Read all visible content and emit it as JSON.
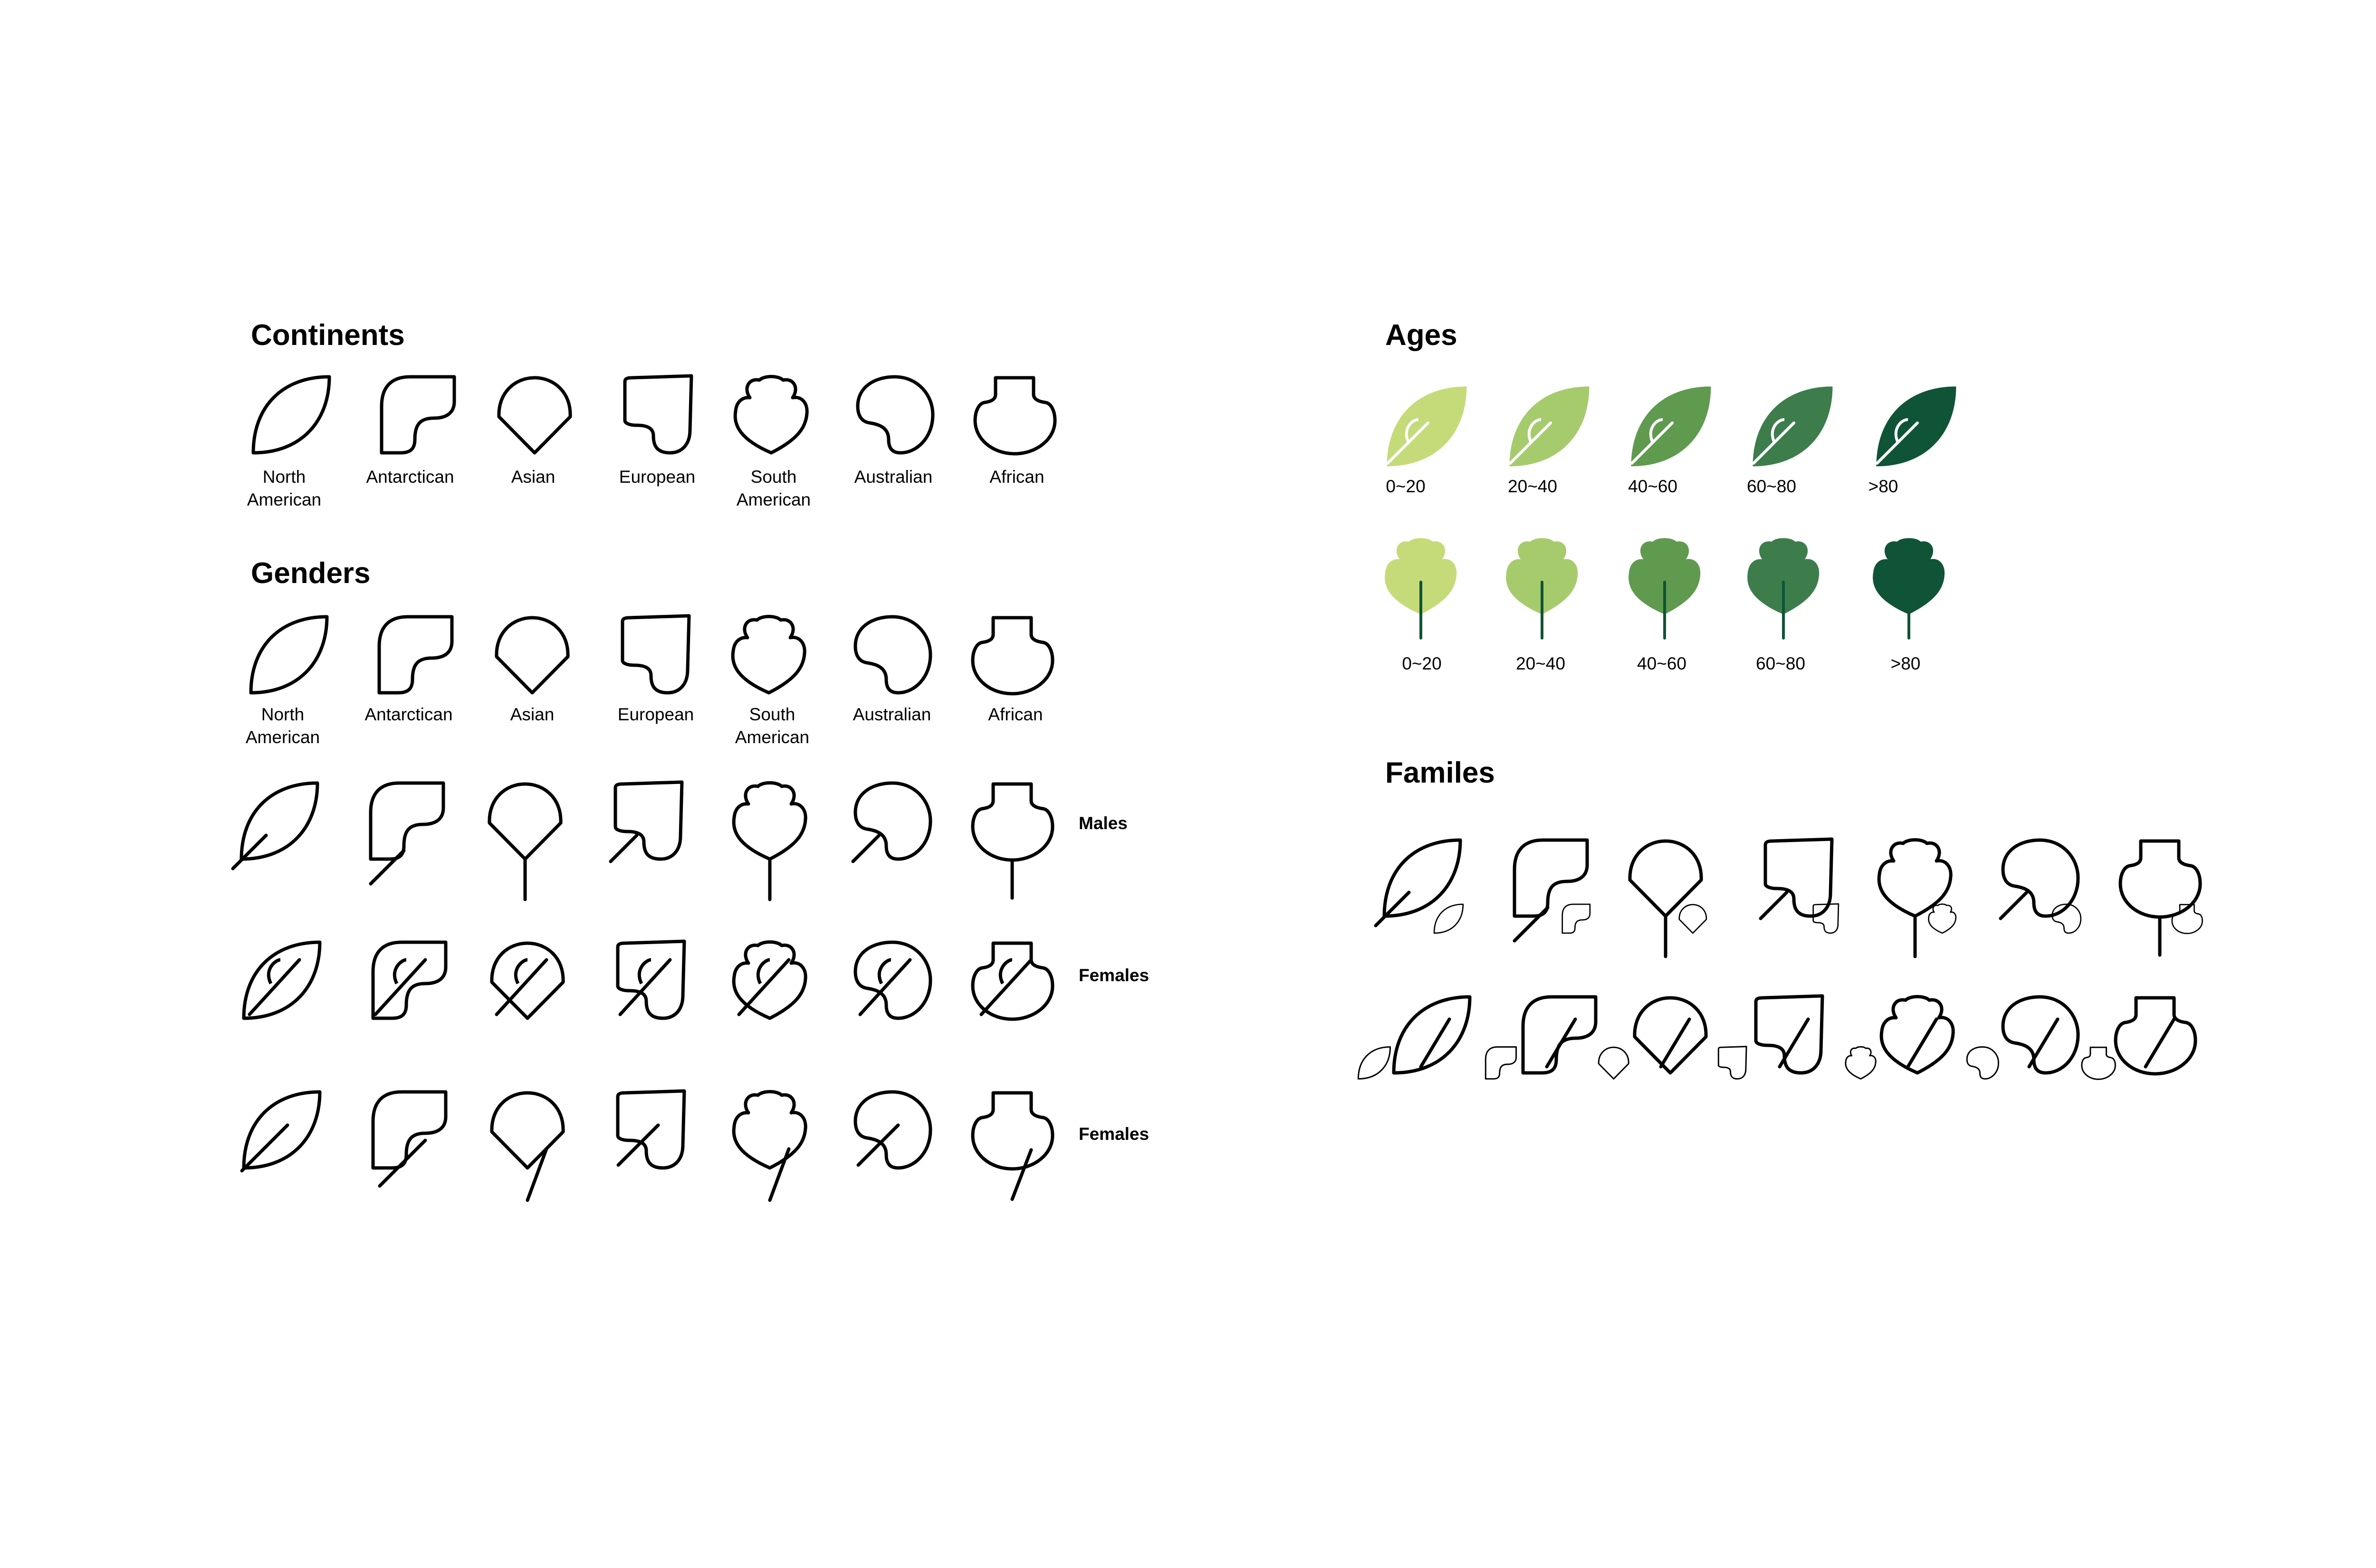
{
  "headings": {
    "continents": "Continents",
    "genders": "Genders",
    "ages": "Ages",
    "families": "Familes"
  },
  "continent_labels": [
    "North\nAmerican",
    "Antarctican",
    "Asian",
    "European",
    "South\nAmerican",
    "Australian",
    "African"
  ],
  "gender_row_labels": {
    "males": "Males",
    "females_1": "Females",
    "females_2": "Females"
  },
  "age_labels_row1": [
    "0~20",
    "20~40",
    "40~60",
    "60~80",
    ">80"
  ],
  "age_labels_row2": [
    "0~20",
    "20~40",
    "40~60",
    "60~80",
    ">80"
  ],
  "age_colors": [
    "#c5db79",
    "#a6cb6d",
    "#5f9a4f",
    "#3d7d4c",
    "#0f5436"
  ],
  "icons": {
    "continents": [
      "north-american-leaf-icon",
      "antarctican-leaf-icon",
      "asian-leaf-icon",
      "european-leaf-icon",
      "south-american-leaf-icon",
      "australian-leaf-icon",
      "african-leaf-icon"
    ],
    "age_leaf": "age-leaf-icon",
    "age_sa_leaf": "age-round-leaf-icon",
    "family": "family-leaf-icon"
  }
}
